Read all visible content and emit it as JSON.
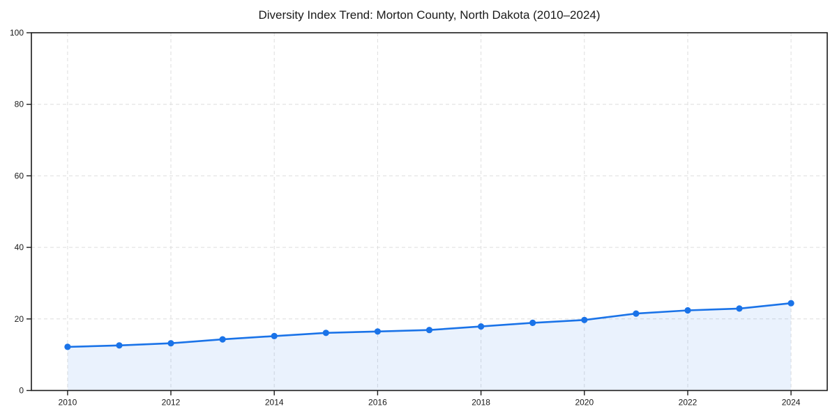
{
  "page": {
    "background_color": "#ffffff"
  },
  "chart_data": {
    "type": "line",
    "title": "Diversity Index Trend: Morton County, North Dakota (2010–2024)",
    "xlabel": "",
    "ylabel": "",
    "x": [
      2010,
      2011,
      2012,
      2013,
      2014,
      2015,
      2016,
      2017,
      2018,
      2019,
      2020,
      2021,
      2022,
      2023,
      2024
    ],
    "series": [
      {
        "name": "Diversity Index",
        "values": [
          12.2,
          12.6,
          13.2,
          14.3,
          15.2,
          16.1,
          16.5,
          16.9,
          17.9,
          18.9,
          19.7,
          21.5,
          22.4,
          22.9,
          24.4
        ]
      }
    ],
    "xticks": [
      2010,
      2012,
      2014,
      2016,
      2018,
      2020,
      2022,
      2024
    ],
    "yticks": [
      0,
      20,
      40,
      60,
      80,
      100
    ],
    "xlim": [
      2009.3,
      2024.7
    ],
    "ylim": [
      0,
      100
    ],
    "grid": true,
    "grid_style": "dashed",
    "legend_position": "none",
    "area_fill": true,
    "marker": "circle",
    "colors": {
      "line": "#1a73e8",
      "marker": "#1a73e8",
      "fill": "#1a73e8",
      "fill_opacity": 0.09,
      "grid": "#dedede",
      "spine": "#1a1a1a",
      "text": "#1a1a1a"
    }
  }
}
